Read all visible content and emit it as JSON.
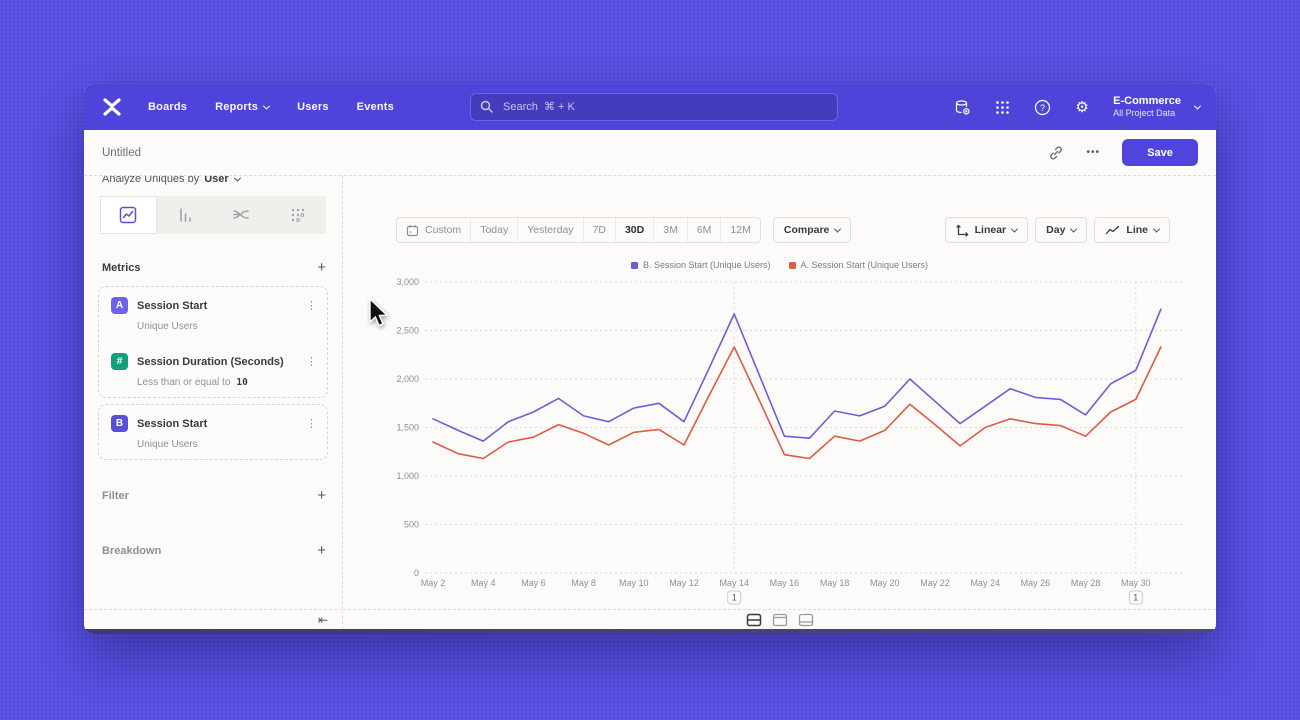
{
  "app": {
    "background": "#5a53e6",
    "accent": "#4f44dd",
    "navbar_color": "#4e44d9"
  },
  "navbar": {
    "items": [
      {
        "label": "Boards",
        "has_chevron": false
      },
      {
        "label": "Reports",
        "has_chevron": true
      },
      {
        "label": "Users",
        "has_chevron": false
      },
      {
        "label": "Events",
        "has_chevron": false
      }
    ],
    "search": {
      "placeholder": "Search  ⌘ + K"
    },
    "project": {
      "name": "E-Commerce",
      "subtitle": "All Project Data"
    }
  },
  "title_bar": {
    "title": "Untitled",
    "menu": "•••",
    "save_label": "Save"
  },
  "sidebar": {
    "analyze_prefix": "Analyze Uniques by",
    "analyze_value": "User",
    "metrics_header": "Metrics",
    "add_label": "+",
    "kebab": "⋮",
    "metrics": [
      {
        "badge": "A",
        "badge_color": "#7061ea",
        "title": "Session Start",
        "subtitle": "Unique Users"
      },
      {
        "badge": "#",
        "badge_color": "#12a07e",
        "title": "Session Duration (Seconds)",
        "subtitle": "Less than or equal to",
        "value": "10"
      },
      {
        "badge": "B",
        "badge_color": "#5b4ed9",
        "title": "Session Start",
        "subtitle": "Unique Users"
      }
    ],
    "filter_label": "Filter",
    "breakdown_label": "Breakdown"
  },
  "toolbar": {
    "ranges": [
      "Custom",
      "Today",
      "Yesterday",
      "7D",
      "30D",
      "3M",
      "6M",
      "12M"
    ],
    "active_range": "30D",
    "compare_label": "Compare",
    "scale_label": "Linear",
    "interval_label": "Day",
    "chart_type_label": "Line"
  },
  "footer": {
    "collapse_icon": "⇤"
  },
  "chart_data": {
    "type": "line",
    "x": [
      "May 2",
      "May 3",
      "May 4",
      "May 5",
      "May 6",
      "May 7",
      "May 8",
      "May 9",
      "May 10",
      "May 11",
      "May 12",
      "May 13",
      "May 14",
      "May 15",
      "May 16",
      "May 17",
      "May 18",
      "May 19",
      "May 20",
      "May 21",
      "May 22",
      "May 23",
      "May 24",
      "May 25",
      "May 26",
      "May 27",
      "May 28",
      "May 29",
      "May 30",
      "May 31"
    ],
    "x_tick_every": 2,
    "series": [
      {
        "name": "B. Session Start (Unique Users)",
        "color": "#6b5fd8",
        "values": [
          1590,
          1470,
          1360,
          1560,
          1660,
          1800,
          1620,
          1560,
          1700,
          1750,
          1560,
          2110,
          2670,
          2040,
          1410,
          1390,
          1670,
          1620,
          1720,
          2000,
          1770,
          1540,
          1720,
          1900,
          1810,
          1790,
          1630,
          1950,
          2090,
          2720
        ]
      },
      {
        "name": "A. Session Start (Unique Users)",
        "color": "#e25a41",
        "values": [
          1350,
          1230,
          1180,
          1350,
          1400,
          1530,
          1440,
          1320,
          1450,
          1480,
          1320,
          1830,
          2330,
          1780,
          1220,
          1180,
          1410,
          1360,
          1470,
          1740,
          1530,
          1310,
          1500,
          1590,
          1540,
          1520,
          1410,
          1660,
          1790,
          2330
        ]
      }
    ],
    "ylim": [
      0,
      3000
    ],
    "yticks": [
      0,
      500,
      1000,
      1500,
      2000,
      2500,
      3000
    ],
    "ytick_labels": [
      "0",
      "500",
      "1,000",
      "1,500",
      "2,000",
      "2,500",
      "3,000"
    ],
    "annotations": [
      {
        "x": "May 14",
        "x_index": 12,
        "label": "1"
      },
      {
        "x": "May 30",
        "x_index": 28,
        "label": "1"
      }
    ],
    "legend_position": "top-center",
    "grid": "horizontal-dashed",
    "title": "",
    "xlabel": "",
    "ylabel": ""
  }
}
